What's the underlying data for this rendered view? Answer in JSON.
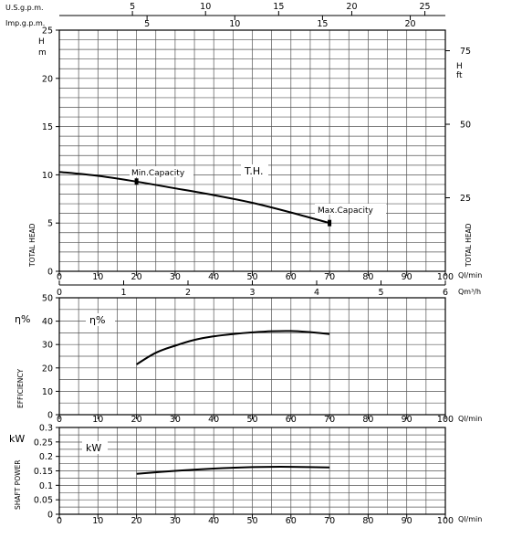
{
  "chart_data": [
    {
      "type": "line",
      "panel": "head",
      "top_axes": [
        {
          "label": "U.S.g.p.m.",
          "ticks": [
            "5",
            "10",
            "15",
            "20",
            "25"
          ],
          "min": 0,
          "max": 26.4
        },
        {
          "label": "Imp.g.p.m.",
          "ticks": [
            "5",
            "10",
            "15",
            "20"
          ],
          "min": 0,
          "max": 22.0
        }
      ],
      "x": {
        "ticks": [
          "0",
          "10",
          "20",
          "30",
          "40",
          "50",
          "60",
          "70",
          "80",
          "90",
          "100"
        ],
        "unit": "Ql/min",
        "min": 0,
        "max": 100
      },
      "x2": {
        "ticks": [
          "0",
          "1",
          "2",
          "3",
          "4",
          "5",
          "6"
        ],
        "unit": "Qm³/h",
        "min": 0,
        "max": 6
      },
      "y": {
        "ticks": [
          "0",
          "5",
          "10",
          "15",
          "20",
          "25"
        ],
        "unit": "m",
        "unit_letter": "H",
        "min": 0,
        "max": 25
      },
      "y2": {
        "ticks": [
          "25",
          "50",
          "75"
        ],
        "unit": "ft",
        "unit_letter": "H",
        "min": 0,
        "max": 82
      },
      "left_axis_title": "TOTAL HEAD",
      "right_axis_title": "TOTAL HEAD",
      "curve_label": "T.H.",
      "annotations": [
        {
          "text": "Min.Capacity",
          "x": 20,
          "y": 9.3
        },
        {
          "text": "Max.Capacity",
          "x": 70,
          "y": 5.0
        }
      ],
      "series": [
        {
          "x": [
            0,
            10,
            20,
            30,
            40,
            50,
            60,
            70
          ],
          "values": [
            10.3,
            9.9,
            9.3,
            8.6,
            7.9,
            7.1,
            6.1,
            5.0
          ]
        }
      ],
      "grid": true
    },
    {
      "type": "line",
      "panel": "efficiency",
      "x": {
        "ticks": [
          "0",
          "10",
          "20",
          "30",
          "40",
          "50",
          "60",
          "70",
          "80",
          "90",
          "100"
        ],
        "unit": "Ql/min",
        "min": 0,
        "max": 100
      },
      "y": {
        "ticks": [
          "0",
          "10",
          "20",
          "30",
          "40",
          "50"
        ],
        "unit": "η%",
        "min": 0,
        "max": 50
      },
      "left_axis_title": "EFFICIENCY",
      "curve_label": "η%",
      "series": [
        {
          "x": [
            20,
            25,
            30,
            35,
            40,
            45,
            50,
            55,
            60,
            65,
            70
          ],
          "values": [
            21.5,
            26.5,
            29.5,
            32,
            33.5,
            34.5,
            35.2,
            35.7,
            35.8,
            35.3,
            34.5
          ]
        }
      ],
      "grid": true
    },
    {
      "type": "line",
      "panel": "power",
      "x": {
        "ticks": [
          "0",
          "10",
          "20",
          "30",
          "40",
          "50",
          "60",
          "70",
          "80",
          "90",
          "100"
        ],
        "unit": "Ql/min",
        "min": 0,
        "max": 100
      },
      "y": {
        "ticks": [
          "0",
          "0.05",
          "0.1",
          "0.15",
          "0.2",
          "0.25",
          "0.3"
        ],
        "unit": "kW",
        "min": 0,
        "max": 0.3
      },
      "left_axis_title": "SHAFT POWER",
      "curve_label": "kW",
      "series": [
        {
          "x": [
            20,
            30,
            40,
            50,
            55,
            60,
            70
          ],
          "values": [
            0.14,
            0.15,
            0.158,
            0.163,
            0.164,
            0.164,
            0.162
          ]
        }
      ],
      "grid": true
    }
  ]
}
